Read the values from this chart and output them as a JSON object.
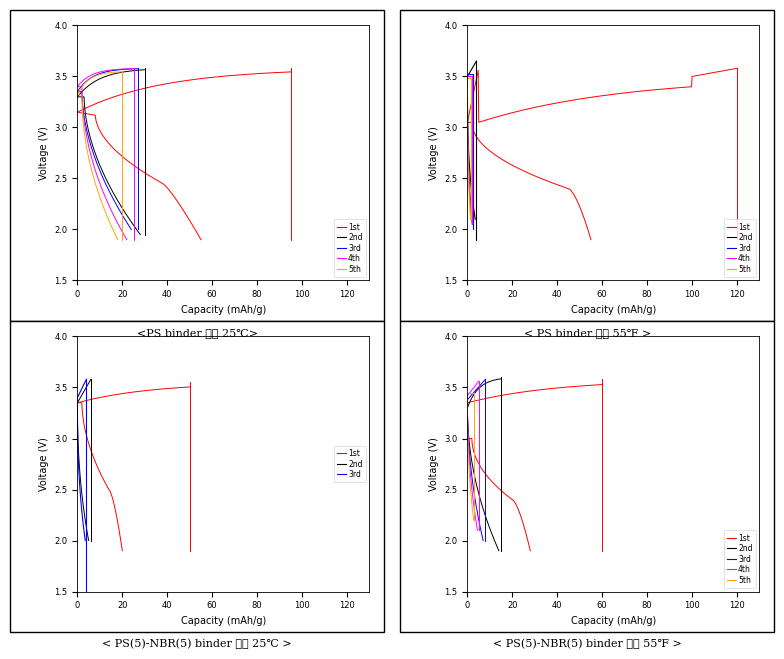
{
  "fig_title_tl": "<PS binder 사용 25℃>",
  "fig_title_tr": "< PS binder 사용 55℉ >",
  "fig_title_bl": "< PS(5)-NBR(5) binder 사용 25℃ >",
  "fig_title_br": "< PS(5)-NBR(5) binder 사용 55℉ >",
  "xlabel": "Capacity (mAh/g)",
  "ylabel": "Voltage (V)",
  "ylim": [
    1.5,
    4.0
  ],
  "xlim": [
    0,
    130
  ],
  "yticks": [
    1.5,
    2.0,
    2.5,
    3.0,
    3.5,
    4.0
  ],
  "xticks": [
    0,
    20,
    40,
    60,
    80,
    100,
    120
  ],
  "colors_5": [
    "red",
    "black",
    "blue",
    "magenta",
    "orange"
  ],
  "colors_3": [
    "red",
    "black",
    "blue"
  ],
  "legend_5": [
    "1st",
    "2nd",
    "3rd",
    "4th",
    "5th"
  ],
  "legend_3": [
    "1st",
    "2nd",
    "3rd"
  ],
  "background_color": "#ffffff"
}
